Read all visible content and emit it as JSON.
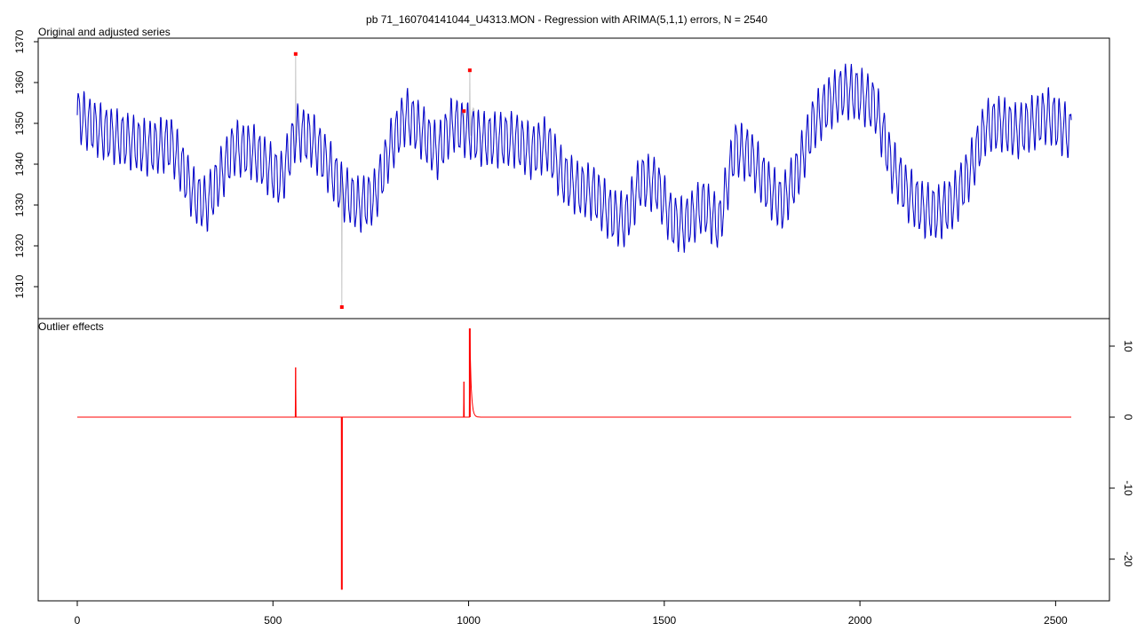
{
  "title": "pb 71_160704141044_U4313.MON - Regression with ARIMA(5,1,1) errors, N = 2540",
  "chart_data": [
    {
      "type": "line",
      "panel_label": "Original and adjusted series",
      "x": {
        "range": [
          0,
          2540
        ],
        "ticks": [
          0,
          500,
          1000,
          1500,
          2000,
          2500
        ]
      },
      "ylim": [
        1303,
        1371
      ],
      "yticks": [
        1310,
        1320,
        1330,
        1340,
        1350,
        1360,
        1370
      ],
      "grid": false,
      "colors": {
        "original": "#c8c8c8",
        "adjusted": "#0000cc",
        "outlier_marker": "#ff0000"
      },
      "series": [
        {
          "role": "adjusted",
          "x": [
            0,
            60,
            120,
            180,
            240,
            300,
            330,
            400,
            450,
            520,
            560,
            600,
            640,
            680,
            720,
            760,
            800,
            840,
            880,
            920,
            960,
            1000,
            1040,
            1080,
            1120,
            1160,
            1200,
            1240,
            1280,
            1320,
            1360,
            1400,
            1440,
            1480,
            1520,
            1550,
            1600,
            1640,
            1680,
            1720,
            1760,
            1800,
            1840,
            1880,
            1920,
            1960,
            2000,
            2040,
            2080,
            2120,
            2160,
            2200,
            2240,
            2280,
            2320,
            2360,
            2400,
            2440,
            2480,
            2540
          ],
          "values": [
            1352,
            1348,
            1346,
            1344,
            1345,
            1332,
            1330,
            1344,
            1343,
            1336,
            1348,
            1346,
            1340,
            1333,
            1330,
            1332,
            1344,
            1352,
            1348,
            1343,
            1350,
            1348,
            1346,
            1346,
            1346,
            1343,
            1345,
            1337,
            1334,
            1333,
            1328,
            1326,
            1336,
            1335,
            1326,
            1325,
            1330,
            1325,
            1344,
            1342,
            1335,
            1330,
            1338,
            1350,
            1355,
            1358,
            1357,
            1354,
            1340,
            1333,
            1329,
            1328,
            1331,
            1338,
            1349,
            1350,
            1348,
            1350,
            1352,
            1347
          ],
          "amplitude": 6
        }
      ],
      "outliers": [
        {
          "x": 558,
          "original": 1367,
          "adjusted": 1360
        },
        {
          "x": 676,
          "original": 1305,
          "adjusted": 1331
        },
        {
          "x": 988,
          "original": 1353,
          "adjusted": 1348
        },
        {
          "x": 1003,
          "original": 1363,
          "adjusted": 1351
        }
      ]
    },
    {
      "type": "line",
      "panel_label": "Outlier effects",
      "x": {
        "range": [
          0,
          2540
        ],
        "ticks": [
          0,
          500,
          1000,
          1500,
          2000,
          2500
        ]
      },
      "ylim": [
        -25,
        14
      ],
      "yticks": [
        -20,
        -10,
        0,
        10
      ],
      "grid": false,
      "colors": {
        "effect": "#ff0000"
      },
      "series": [
        {
          "role": "effect",
          "x": [
            0,
            2540
          ],
          "values": [
            0,
            0
          ]
        }
      ],
      "effects": [
        {
          "x": 558,
          "value": 7,
          "kind": "AO"
        },
        {
          "x": 676,
          "value": -24.3,
          "kind": "AO"
        },
        {
          "x": 988,
          "value": 5,
          "kind": "AO"
        },
        {
          "x": 1003,
          "value": 12.5,
          "kind": "TC",
          "decay": 0.75
        }
      ]
    }
  ]
}
